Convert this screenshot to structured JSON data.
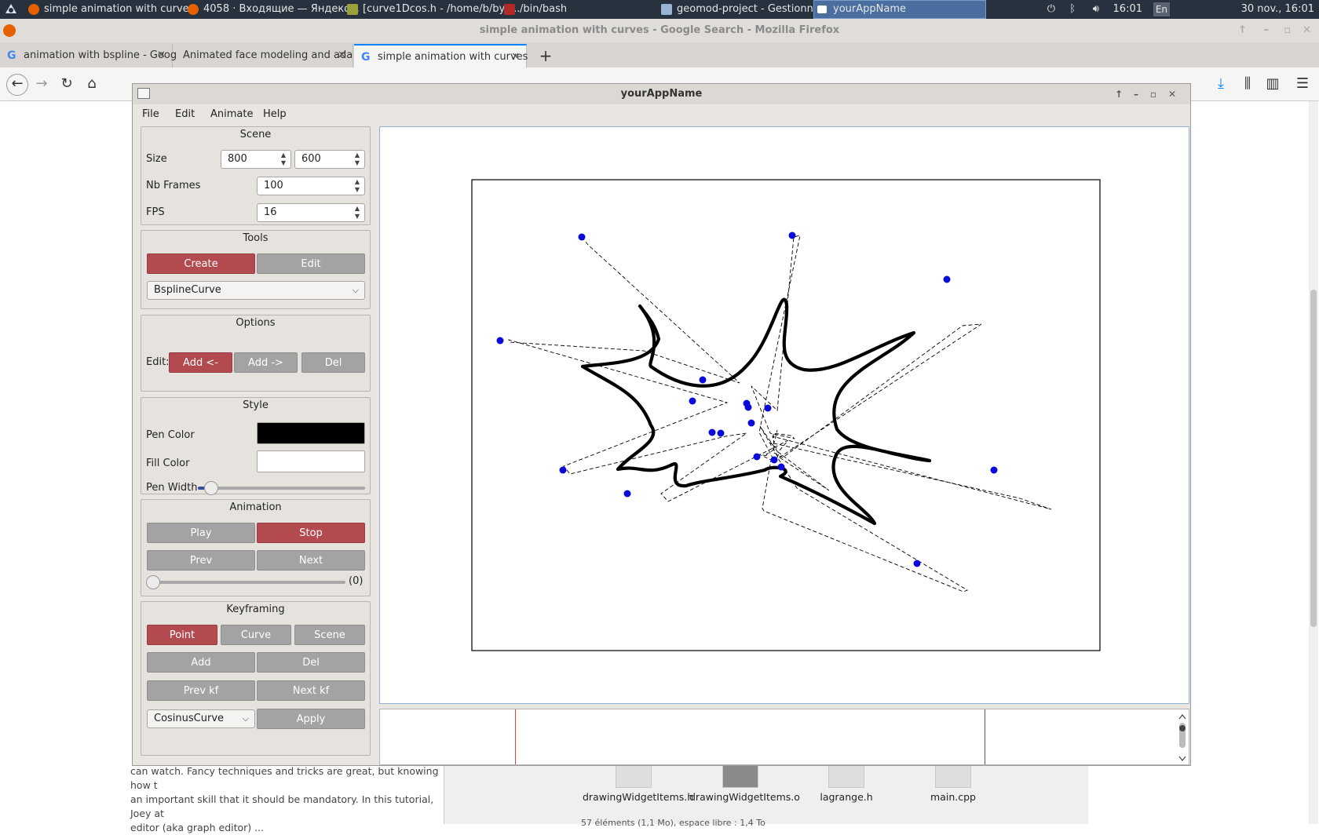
{
  "taskbar": {
    "tasks": [
      {
        "label": "simple animation with curve..."
      },
      {
        "label": "4058 · Входящие — Яндекс..."
      },
      {
        "label": "[curve1Dcos.h - /home/b/bys..."
      },
      {
        "label": "/bin/bash"
      },
      {
        "label": "geomod-project - Gestionnai..."
      },
      {
        "label": "yourAppName"
      }
    ],
    "clock": "16:01",
    "lang": "En",
    "date": "30 nov., 16:01"
  },
  "firefox": {
    "title": "simple animation with curves - Google Search - Mozilla Firefox",
    "tabs": [
      {
        "label": "animation with bspline - Goog"
      },
      {
        "label": "Animated face modeling and ada"
      },
      {
        "label": "simple animation with curves"
      }
    ],
    "page_text": [
      "can watch. Fancy techniques and tricks are great, but knowing how t",
      "an important skill that it should be mandatory. In this tutorial, Joey at",
      "editor (aka graph editor) ..."
    ],
    "files": [
      {
        "name": "drawingWidgetItems.h"
      },
      {
        "name": "drawingWidgetItems.o"
      },
      {
        "name": "lagrange.h"
      },
      {
        "name": "main.cpp"
      }
    ],
    "file_status": "57 éléments (1,1 Mo), espace libre : 1,4 To"
  },
  "app": {
    "title": "yourAppName",
    "menu": [
      "File",
      "Edit",
      "Animate",
      "Help"
    ],
    "scene": {
      "title": "Scene",
      "size_label": "Size",
      "width": "800",
      "height": "600",
      "frames_label": "Nb Frames",
      "frames": "100",
      "fps_label": "FPS",
      "fps": "16"
    },
    "tools": {
      "title": "Tools",
      "create": "Create",
      "edit": "Edit",
      "curve_type": "BsplineCurve"
    },
    "options": {
      "title": "Options",
      "edit_label": "Edit:",
      "add_before": "Add <-",
      "add_after": "Add ->",
      "del": "Del"
    },
    "style": {
      "title": "Style",
      "pen_color_label": "Pen Color",
      "pen_color": "#000000",
      "fill_color_label": "Fill Color",
      "fill_color": "#ffffff",
      "pen_width_label": "Pen Width",
      "pen_width_fraction": 0.08
    },
    "animation": {
      "title": "Animation",
      "play": "Play",
      "stop": "Stop",
      "prev": "Prev",
      "next": "Next",
      "frame_value": "(0)"
    },
    "keyframing": {
      "title": "Keyframing",
      "point": "Point",
      "curve": "Curve",
      "scene": "Scene",
      "add": "Add",
      "del": "Del",
      "prev_kf": "Prev kf",
      "next_kf": "Next kf",
      "interp": "CosinusCurve",
      "apply": "Apply"
    },
    "accent_color": "#b34a4f"
  }
}
